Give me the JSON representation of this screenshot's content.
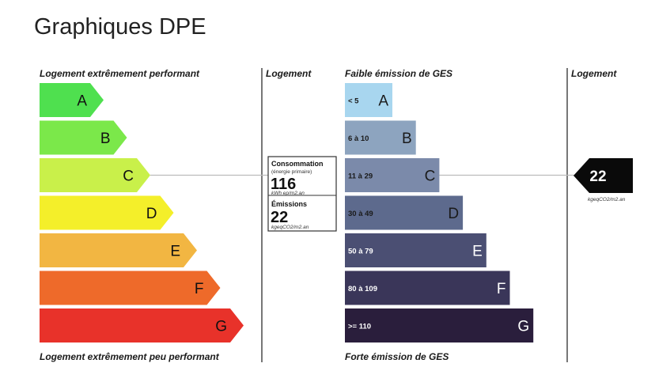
{
  "page_title": "Graphiques DPE",
  "chart_data": [
    {
      "type": "bar",
      "name": "dpe-energy",
      "top_label": "Logement extrêmement performant",
      "bottom_label": "Logement extrêmement peu performant",
      "column_label": "Logement",
      "categories": [
        "A",
        "B",
        "C",
        "D",
        "E",
        "F",
        "G"
      ],
      "colors": [
        "#4fe04f",
        "#7be84a",
        "#c9f04a",
        "#f4ef2a",
        "#f2b642",
        "#ee6a2a",
        "#e8322a"
      ],
      "current_class": "C",
      "consumption": {
        "label": "Consommation",
        "sublabel": "(énergie primaire)",
        "value": "116",
        "unit": "kWh ep/m2.an"
      },
      "emissions": {
        "label": "Émissions",
        "value": "22",
        "unit": "kgeqCO2/m2.an"
      }
    },
    {
      "type": "bar",
      "name": "dpe-ges",
      "top_label": "Faible émission de GES",
      "bottom_label": "Forte émission de GES",
      "column_label": "Logement",
      "categories": [
        "A",
        "B",
        "C",
        "D",
        "E",
        "F",
        "G"
      ],
      "ranges": [
        "< 5",
        "6 à 10",
        "11 à 29",
        "30 à 49",
        "50 à 79",
        "80 à 109",
        ">= 110"
      ],
      "colors": [
        "#a8d6ef",
        "#8da4bf",
        "#7b8aaa",
        "#5d6a8d",
        "#4b4f73",
        "#3a3659",
        "#2a1e3c"
      ],
      "current_class": "C",
      "indicator": {
        "value": "22",
        "unit": "kgeqCO2/m2.an"
      }
    }
  ]
}
